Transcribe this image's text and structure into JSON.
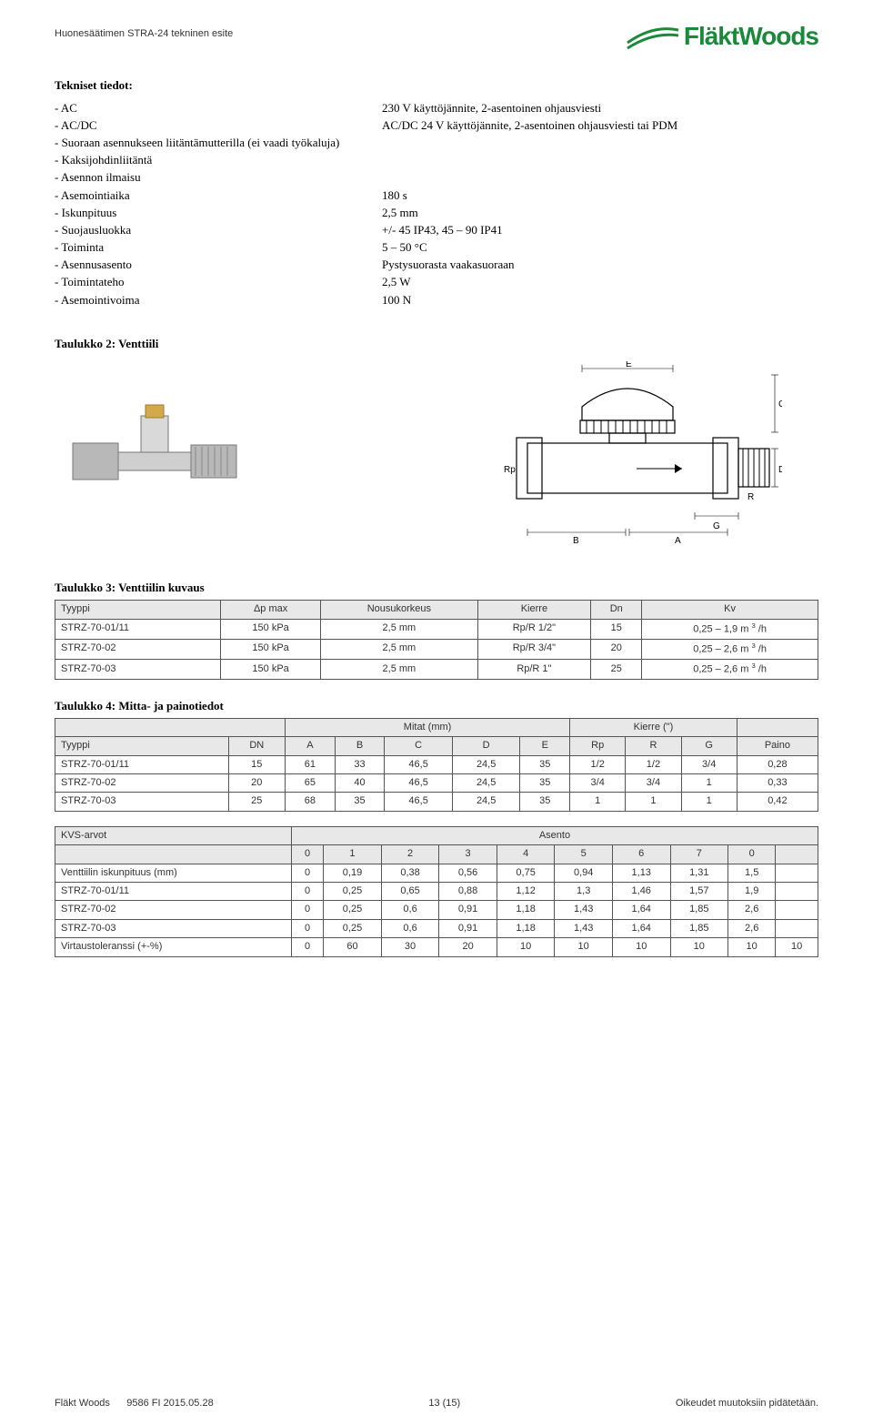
{
  "header": {
    "doc_title": "Huonesäätimen STRA-24 tekninen esite",
    "logo_text": "FläktWoods",
    "logo_color": "#1a8a3a"
  },
  "tech": {
    "title": "Tekniset tiedot:",
    "rows": [
      {
        "label": "- AC",
        "value": "230 V käyttöjännite, 2-asentoinen ohjausviesti"
      },
      {
        "label": "- AC/DC",
        "value": "AC/DC 24 V käyttöjännite, 2-asentoinen ohjausviesti tai PDM"
      },
      {
        "label": "- Suoraan asennukseen liitäntämutterilla (ei vaadi työkaluja)",
        "value": ""
      },
      {
        "label": "- Kaksijohdinliitäntä",
        "value": ""
      },
      {
        "label": "- Asennon ilmaisu",
        "value": ""
      },
      {
        "label": "- Asemointiaika",
        "value": "180 s"
      },
      {
        "label": "- Iskunpituus",
        "value": "2,5 mm"
      },
      {
        "label": "- Suojausluokka",
        "value": "+/- 45 IP43, 45 – 90 IP41"
      },
      {
        "label": "- Toiminta",
        "value": "5 – 50 °C"
      },
      {
        "label": "- Asennusasento",
        "value": "Pystysuorasta vaakasuoraan"
      },
      {
        "label": "- Toimintateho",
        "value": "2,5 W"
      },
      {
        "label": "- Asemointivoima",
        "value": "100 N"
      }
    ]
  },
  "table2_title": "Taulukko 2: Venttiili",
  "diagram_labels": {
    "E": "E",
    "C": "C",
    "D": "D",
    "R": "R",
    "Rp": "Rp",
    "G": "G",
    "B": "B",
    "A": "A"
  },
  "table3": {
    "title": "Taulukko 3: Venttiilin kuvaus",
    "columns": [
      "Tyyppi",
      "Δp max",
      "Nousukorkeus",
      "Kierre",
      "Dn",
      "Kv"
    ],
    "rows": [
      [
        "STRZ-70-01/11",
        "150 kPa",
        "2,5 mm",
        "Rp/R 1/2\"",
        "15",
        "0,25 – 1,9 m ³ /h"
      ],
      [
        "STRZ-70-02",
        "150 kPa",
        "2,5 mm",
        "Rp/R 3/4\"",
        "20",
        "0,25 – 2,6 m ³ /h"
      ],
      [
        "STRZ-70-03",
        "150 kPa",
        "2,5 mm",
        "Rp/R 1\"",
        "25",
        "0,25 – 2,6 m ³ /h"
      ]
    ]
  },
  "table4": {
    "title": "Taulukko 4: Mitta- ja painotiedot",
    "group_headers": [
      "",
      "",
      "Mitat (mm)",
      "",
      "",
      "",
      "",
      "Kierre (\")",
      "",
      "",
      ""
    ],
    "columns": [
      "Tyyppi",
      "DN",
      "A",
      "B",
      "C",
      "D",
      "E",
      "Rp",
      "R",
      "G",
      "Paino"
    ],
    "rows": [
      [
        "STRZ-70-01/11",
        "15",
        "61",
        "33",
        "46,5",
        "24,5",
        "35",
        "1/2",
        "1/2",
        "3/4",
        "0,28"
      ],
      [
        "STRZ-70-02",
        "20",
        "65",
        "40",
        "46,5",
        "24,5",
        "35",
        "3/4",
        "3/4",
        "1",
        "0,33"
      ],
      [
        "STRZ-70-03",
        "25",
        "68",
        "35",
        "46,5",
        "24,5",
        "35",
        "1",
        "1",
        "1",
        "0,42"
      ]
    ]
  },
  "table5": {
    "header_left": "KVS-arvot",
    "header_right": "Asento",
    "columns": [
      "",
      "0",
      "1",
      "2",
      "3",
      "4",
      "5",
      "6",
      "7",
      "0",
      ""
    ],
    "rows": [
      [
        "Venttiilin iskunpituus (mm)",
        "0",
        "0,19",
        "0,38",
        "0,56",
        "0,75",
        "0,94",
        "1,13",
        "1,31",
        "1,5",
        ""
      ],
      [
        "STRZ-70-01/11",
        "0",
        "0,25",
        "0,65",
        "0,88",
        "1,12",
        "1,3",
        "1,46",
        "1,57",
        "1,9",
        ""
      ],
      [
        "STRZ-70-02",
        "0",
        "0,25",
        "0,6",
        "0,91",
        "1,18",
        "1,43",
        "1,64",
        "1,85",
        "2,6",
        ""
      ],
      [
        "STRZ-70-03",
        "0",
        "0,25",
        "0,6",
        "0,91",
        "1,18",
        "1,43",
        "1,64",
        "1,85",
        "2,6",
        ""
      ],
      [
        "Virtaustoleranssi (+-%)",
        "0",
        "60",
        "30",
        "20",
        "10",
        "10",
        "10",
        "10",
        "10",
        "10"
      ]
    ]
  },
  "footer": {
    "left": "Fläkt Woods",
    "code": "9586 FI 2015.05.28",
    "center": "13 (15)",
    "right": "Oikeudet muutoksiin pidätetään."
  },
  "styles": {
    "table_border_color": "#555555",
    "table_header_bg": "#e8e8e8",
    "body_font_size": 13,
    "table_font_size": 11,
    "background": "#ffffff"
  }
}
